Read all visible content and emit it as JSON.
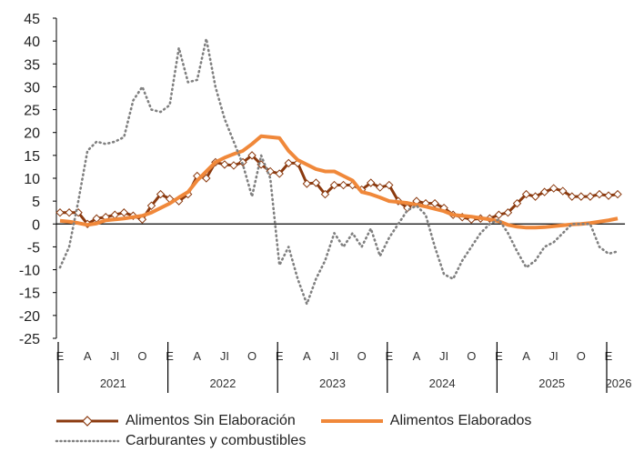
{
  "chart_data": {
    "type": "line",
    "ylim": [
      -25,
      45
    ],
    "yticks": [
      -25,
      -20,
      -15,
      -10,
      -5,
      0,
      5,
      10,
      15,
      20,
      25,
      30,
      35,
      40,
      45
    ],
    "month_labels": [
      "E",
      "A",
      "JI",
      "O",
      "E",
      "A",
      "JI",
      "O",
      "E",
      "A",
      "JI",
      "O",
      "E",
      "A",
      "JI",
      "O",
      "E",
      "A",
      "JI",
      "O",
      "E"
    ],
    "years": [
      "2021",
      "2022",
      "2023",
      "2024",
      "2025",
      "2026"
    ],
    "x_start": "2021-01",
    "x_end": "2026-02",
    "grid": false,
    "legend_position": "bottom",
    "series": [
      {
        "name": "Alimentos Sin Elaboración",
        "color": "#8B3A0F",
        "style": "line-diamond",
        "x": [
          "2021-01",
          "2021-02",
          "2021-03",
          "2021-04",
          "2021-05",
          "2021-06",
          "2021-07",
          "2021-08",
          "2021-09",
          "2021-10",
          "2021-11",
          "2021-12",
          "2022-01",
          "2022-02",
          "2022-03",
          "2022-04",
          "2022-05",
          "2022-06",
          "2022-07",
          "2022-08",
          "2022-09",
          "2022-10",
          "2022-11",
          "2022-12",
          "2023-01",
          "2023-02",
          "2023-03",
          "2023-04",
          "2023-05",
          "2023-06",
          "2023-07",
          "2023-08",
          "2023-09",
          "2023-10",
          "2023-11",
          "2023-12",
          "2024-01",
          "2024-02",
          "2024-03",
          "2024-04",
          "2024-05",
          "2024-06",
          "2024-07",
          "2024-08",
          "2024-09",
          "2024-10",
          "2024-11",
          "2024-12",
          "2025-01",
          "2025-02",
          "2025-03",
          "2025-04",
          "2025-05",
          "2025-06",
          "2025-07",
          "2025-08",
          "2025-09",
          "2025-10",
          "2025-11",
          "2025-12",
          "2026-01",
          "2026-02"
        ],
        "values": [
          2.5,
          2.5,
          2.5,
          0,
          1.2,
          1.5,
          2,
          2.5,
          1.8,
          1,
          4,
          6.5,
          5.5,
          5,
          6.5,
          10.5,
          10,
          13.5,
          13,
          12.8,
          13.5,
          15,
          13,
          11.5,
          11,
          13.3,
          13.3,
          8.8,
          9,
          6.5,
          8.5,
          8.5,
          8.5,
          7.5,
          9,
          8,
          8.5,
          5,
          3.5,
          5,
          4.5,
          4.5,
          3.5,
          2,
          1.5,
          1,
          1.2,
          1.2,
          2,
          2.5,
          4.5,
          6.5,
          6,
          7,
          7.8,
          7.2,
          6,
          6,
          6,
          6.5,
          6.2,
          6.5
        ]
      },
      {
        "name": "Alimentos Elaborados",
        "color": "#F0883A",
        "style": "line",
        "x": [
          "2021-01",
          "2021-02",
          "2021-03",
          "2021-04",
          "2021-05",
          "2021-06",
          "2021-07",
          "2021-08",
          "2021-09",
          "2021-10",
          "2021-11",
          "2021-12",
          "2022-01",
          "2022-02",
          "2022-03",
          "2022-04",
          "2022-05",
          "2022-06",
          "2022-07",
          "2022-08",
          "2022-09",
          "2022-10",
          "2022-11",
          "2022-12",
          "2023-01",
          "2023-02",
          "2023-03",
          "2023-04",
          "2023-05",
          "2023-06",
          "2023-07",
          "2023-08",
          "2023-09",
          "2023-10",
          "2023-11",
          "2023-12",
          "2024-01",
          "2024-02",
          "2024-03",
          "2024-04",
          "2024-05",
          "2024-06",
          "2024-07",
          "2024-08",
          "2024-09",
          "2024-10",
          "2024-11",
          "2024-12",
          "2025-01",
          "2025-02",
          "2025-03",
          "2025-04",
          "2025-05",
          "2025-06",
          "2025-07",
          "2025-08",
          "2025-09",
          "2025-10",
          "2025-11",
          "2025-12",
          "2026-01",
          "2026-02"
        ],
        "values": [
          0.7,
          0.5,
          0.2,
          -0.2,
          0.1,
          0.8,
          1,
          1.2,
          1.5,
          1.8,
          2.5,
          3.5,
          4.5,
          5.8,
          7,
          9.5,
          11.5,
          13.5,
          14.5,
          15.3,
          16,
          17.5,
          19.2,
          19,
          18.8,
          16,
          14,
          13,
          12,
          11.5,
          11.5,
          10.5,
          9.5,
          7,
          6.5,
          5.8,
          5,
          4.8,
          4.6,
          4.2,
          3.8,
          3.3,
          2.8,
          2,
          1.8,
          1.6,
          1.3,
          1,
          0.6,
          -0.2,
          -0.6,
          -0.8,
          -0.8,
          -0.7,
          -0.5,
          -0.3,
          -0.1,
          0,
          0.2,
          0.5,
          0.8,
          1.2
        ]
      },
      {
        "name": "Carburantes y combustibles",
        "color": "#808080",
        "style": "dotted",
        "x": [
          "2021-01",
          "2021-02",
          "2021-03",
          "2021-04",
          "2021-05",
          "2021-06",
          "2021-07",
          "2021-08",
          "2021-09",
          "2021-10",
          "2021-11",
          "2021-12",
          "2022-01",
          "2022-02",
          "2022-03",
          "2022-04",
          "2022-05",
          "2022-06",
          "2022-07",
          "2022-08",
          "2022-09",
          "2022-10",
          "2022-11",
          "2022-12",
          "2023-01",
          "2023-02",
          "2023-03",
          "2023-04",
          "2023-05",
          "2023-06",
          "2023-07",
          "2023-08",
          "2023-09",
          "2023-10",
          "2023-11",
          "2023-12",
          "2024-01",
          "2024-02",
          "2024-03",
          "2024-04",
          "2024-05",
          "2024-06",
          "2024-07",
          "2024-08",
          "2024-09",
          "2024-10",
          "2024-11",
          "2024-12",
          "2025-01",
          "2025-02",
          "2025-03",
          "2025-04",
          "2025-05",
          "2025-06",
          "2025-07",
          "2025-08",
          "2025-09",
          "2025-10",
          "2025-11",
          "2025-12",
          "2026-01",
          "2026-02"
        ],
        "values": [
          -9.5,
          -5,
          5,
          16,
          18,
          17.5,
          18,
          19,
          27,
          30,
          25,
          24.5,
          26,
          38.5,
          31,
          31.5,
          40.5,
          30,
          23,
          18,
          13,
          6,
          15,
          10,
          -9,
          -5,
          -12,
          -17.5,
          -12,
          -8,
          -2,
          -5,
          -2,
          -5,
          -1,
          -7,
          -3,
          0,
          3,
          4,
          2,
          -5,
          -11,
          -12,
          -8,
          -5,
          -2,
          0,
          1,
          -2,
          -6,
          -9.5,
          -8,
          -5,
          -4,
          -2,
          0,
          0,
          0,
          -5,
          -6.5,
          -6
        ]
      }
    ]
  }
}
